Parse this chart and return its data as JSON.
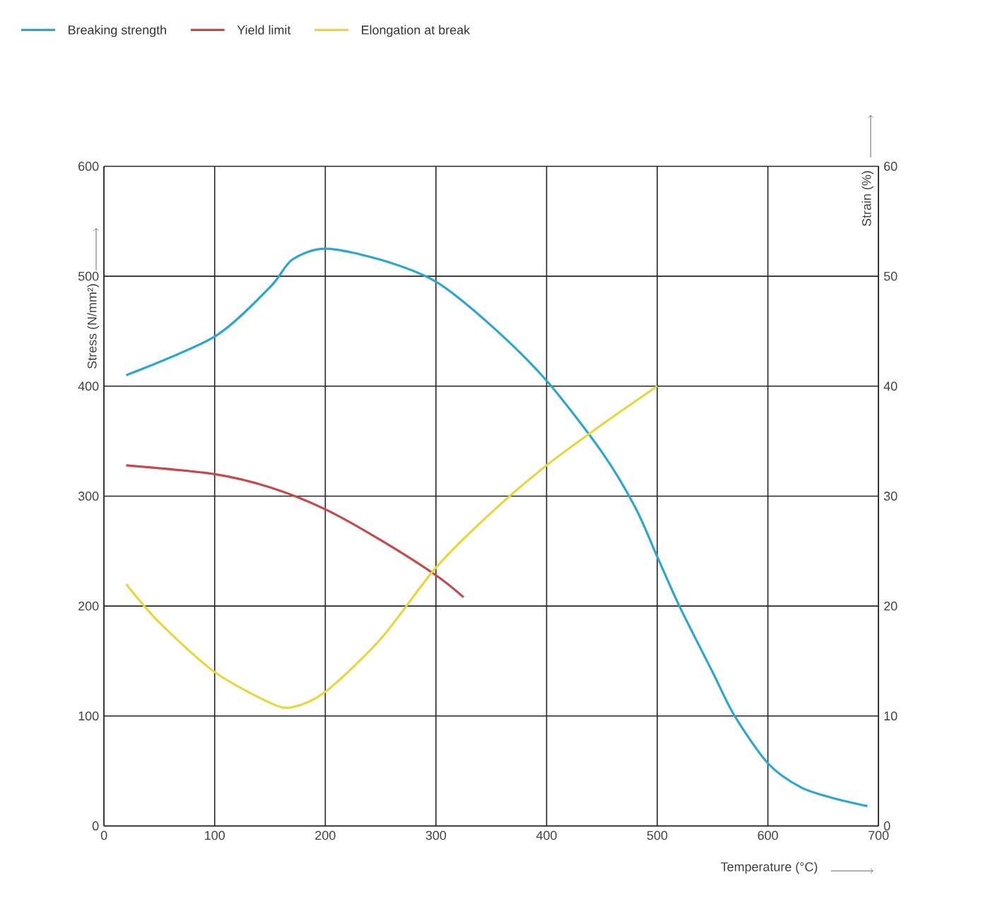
{
  "chart_data": {
    "type": "line",
    "xlabel": "Temperature (°C)",
    "ylabel": "Stress (N/mm²)",
    "y2label": "Strain (%)",
    "xlim": [
      0,
      700
    ],
    "xticks": [
      0,
      100,
      200,
      300,
      400,
      500,
      600,
      700
    ],
    "ylim": [
      0,
      600
    ],
    "yticks": [
      0,
      100,
      200,
      300,
      400,
      500,
      600
    ],
    "y2lim": [
      0,
      60
    ],
    "y2ticks": [
      0,
      10,
      20,
      30,
      40,
      50,
      60
    ],
    "grid": true,
    "legend": "top",
    "line_style": "solid",
    "series": [
      {
        "name": "Breaking strength",
        "color": "#2aa7d0",
        "x": [
          20,
          100,
          150,
          170,
          200,
          250,
          300,
          350,
          400,
          450,
          480,
          500,
          520,
          550,
          570,
          600,
          630,
          660,
          690
        ],
        "values": [
          410,
          445,
          490,
          515,
          525,
          515,
          495,
          455,
          405,
          340,
          290,
          245,
          200,
          140,
          100,
          57,
          35,
          25,
          18
        ]
      },
      {
        "name": "Yield limit",
        "color": "#c8474a",
        "x": [
          20,
          100,
          150,
          200,
          250,
          300,
          325
        ],
        "values": [
          328,
          320,
          308,
          288,
          260,
          228,
          208
        ]
      },
      {
        "name": "Elongation at break",
        "color": "#e6d83a",
        "axis": "y2",
        "x": [
          20,
          50,
          100,
          150,
          170,
          200,
          250,
          300,
          350,
          400,
          450,
          500
        ],
        "values": [
          22,
          18.5,
          14,
          11.2,
          10.8,
          12.2,
          17,
          23.5,
          28.5,
          32.8,
          36.5,
          40
        ]
      }
    ]
  }
}
